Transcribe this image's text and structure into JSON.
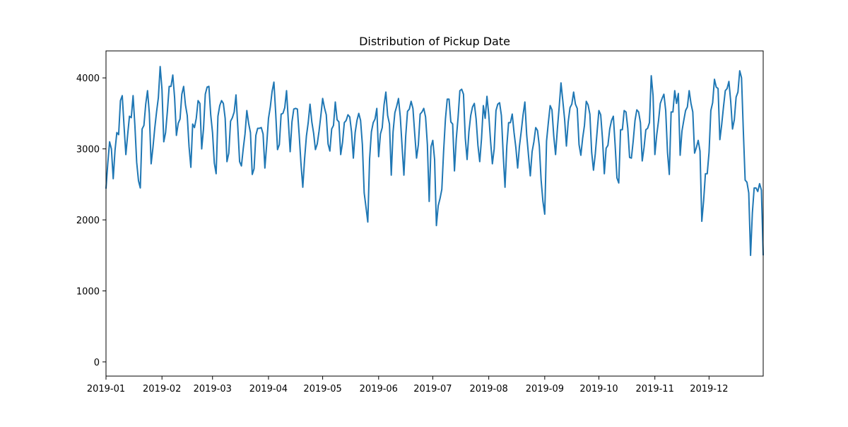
{
  "chart_data": {
    "type": "line",
    "title": "Distribution of Pickup Date",
    "xlabel": "",
    "ylabel": "",
    "x_start": "2019-01-01",
    "x_end": "2019-12-31",
    "xlim": [
      "2019-01-01",
      "2019-12-31"
    ],
    "ylim": [
      -200,
      4380
    ],
    "x_ticks": [
      "2019-01",
      "2019-02",
      "2019-03",
      "2019-04",
      "2019-05",
      "2019-06",
      "2019-07",
      "2019-08",
      "2019-09",
      "2019-10",
      "2019-11",
      "2019-12"
    ],
    "y_ticks": [
      0,
      1000,
      2000,
      3000,
      4000
    ],
    "grid": false,
    "legend": "none",
    "line_color": "#1f77b4",
    "series": [
      {
        "values": [
          2440,
          2800,
          3100,
          3000,
          2580,
          2980,
          3230,
          3200,
          3680,
          3750,
          3320,
          2920,
          3200,
          3460,
          3440,
          3750,
          3330,
          2810,
          2550,
          2450,
          3280,
          3330,
          3630,
          3820,
          3500,
          2790,
          3020,
          3290,
          3520,
          3720,
          4160,
          3840,
          3100,
          3230,
          3530,
          3880,
          3880,
          4040,
          3720,
          3190,
          3360,
          3420,
          3770,
          3880,
          3620,
          3470,
          3030,
          2740,
          3350,
          3300,
          3430,
          3680,
          3640,
          3000,
          3280,
          3770,
          3870,
          3880,
          3480,
          3230,
          2800,
          2650,
          3460,
          3610,
          3680,
          3640,
          3430,
          2820,
          2940,
          3390,
          3440,
          3520,
          3760,
          3310,
          2820,
          2760,
          3000,
          3210,
          3540,
          3360,
          3230,
          2640,
          2720,
          3190,
          3290,
          3290,
          3300,
          3210,
          2730,
          3060,
          3430,
          3590,
          3810,
          3940,
          3500,
          2990,
          3060,
          3490,
          3500,
          3580,
          3820,
          3390,
          2960,
          3380,
          3560,
          3570,
          3560,
          3200,
          2790,
          2460,
          2860,
          3180,
          3370,
          3630,
          3380,
          3220,
          2990,
          3070,
          3250,
          3470,
          3710,
          3580,
          3480,
          3070,
          2970,
          3280,
          3330,
          3660,
          3410,
          3380,
          2920,
          3090,
          3370,
          3400,
          3480,
          3450,
          3240,
          2870,
          3230,
          3400,
          3500,
          3400,
          3060,
          2380,
          2180,
          1970,
          2860,
          3240,
          3370,
          3420,
          3570,
          2890,
          3210,
          3300,
          3620,
          3800,
          3470,
          3350,
          2630,
          3240,
          3510,
          3600,
          3710,
          3450,
          3030,
          2630,
          3180,
          3530,
          3560,
          3670,
          3570,
          3210,
          2870,
          3060,
          3490,
          3520,
          3570,
          3450,
          3060,
          2260,
          3030,
          3120,
          2850,
          1920,
          2200,
          2300,
          2430,
          2970,
          3420,
          3700,
          3700,
          3380,
          3350,
          2690,
          3140,
          3440,
          3820,
          3840,
          3770,
          3150,
          2850,
          3240,
          3470,
          3590,
          3640,
          3420,
          3050,
          2820,
          3150,
          3610,
          3430,
          3740,
          3480,
          3110,
          2790,
          3000,
          3540,
          3630,
          3650,
          3470,
          2920,
          2460,
          3040,
          3370,
          3370,
          3490,
          3230,
          3020,
          2730,
          3040,
          3250,
          3480,
          3660,
          3200,
          2910,
          2620,
          2960,
          3100,
          3300,
          3260,
          3040,
          2560,
          2260,
          2080,
          3110,
          3370,
          3610,
          3550,
          3180,
          2920,
          3280,
          3590,
          3930,
          3680,
          3420,
          3040,
          3380,
          3580,
          3630,
          3800,
          3630,
          3570,
          3060,
          2910,
          3150,
          3330,
          3670,
          3620,
          3490,
          2950,
          2700,
          2930,
          3240,
          3540,
          3480,
          3140,
          2650,
          3010,
          3050,
          3280,
          3400,
          3460,
          3050,
          2590,
          2520,
          3270,
          3270,
          3540,
          3520,
          3290,
          2880,
          2870,
          3110,
          3400,
          3550,
          3520,
          3370,
          2830,
          3020,
          3270,
          3290,
          3370,
          4030,
          3750,
          2920,
          3190,
          3390,
          3640,
          3710,
          3770,
          3540,
          2950,
          2640,
          3520,
          3520,
          3820,
          3640,
          3780,
          2910,
          3250,
          3400,
          3540,
          3590,
          3820,
          3640,
          3520,
          2940,
          3020,
          3120,
          2970,
          1980,
          2270,
          2650,
          2650,
          2950,
          3540,
          3650,
          3980,
          3870,
          3850,
          3130,
          3340,
          3590,
          3820,
          3850,
          3950,
          3670,
          3280,
          3410,
          3730,
          3800,
          4100,
          4000,
          3250,
          2560,
          2530,
          2380,
          1500,
          2100,
          2450,
          2450,
          2400,
          2510,
          2420,
          1500
        ]
      }
    ]
  }
}
